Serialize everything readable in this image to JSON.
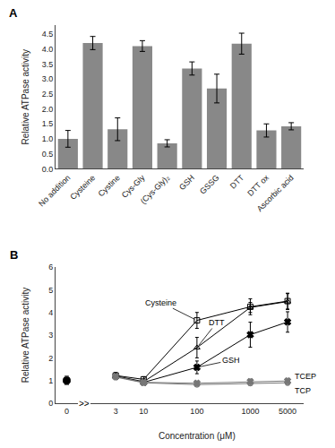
{
  "chart_data": [
    {
      "type": "bar",
      "title": "A",
      "categories": [
        "No addition",
        "Cysteine",
        "Cystine",
        "Cys-Gly",
        "(Cys-Gly)₂",
        "GSH",
        "GSSG",
        "DTT",
        "DTT ox",
        "Ascorbic acid"
      ],
      "values": [
        1.0,
        4.2,
        1.32,
        4.1,
        0.85,
        3.35,
        2.68,
        4.18,
        1.28,
        1.42
      ],
      "errors": [
        0.28,
        0.22,
        0.38,
        0.18,
        0.12,
        0.22,
        0.48,
        0.35,
        0.22,
        0.12
      ],
      "color": "#888888",
      "ylabel": "Relative ATPase activity",
      "ylim": [
        0,
        4.8
      ],
      "yticks": [
        {
          "value": 0,
          "label": "0.0"
        },
        0.5,
        {
          "value": 1,
          "label": "1.0"
        },
        1.5,
        {
          "value": 2,
          "label": "2.0"
        },
        2.5,
        {
          "value": 3,
          "label": "3.0"
        },
        3.5,
        {
          "value": 4,
          "label": "4.0"
        },
        4.5
      ],
      "grid": false
    },
    {
      "type": "line",
      "title": "B",
      "x": [
        0,
        3,
        10,
        100,
        1000,
        5000
      ],
      "xlabel": "Concentration (μM)",
      "ylabel": "Relative ATPase activity",
      "log": "x",
      "xlim": [
        0,
        10000
      ],
      "xticks": [
        0,
        3,
        10,
        100,
        1000,
        5000
      ],
      "ylim": [
        0,
        6
      ],
      "yticks": [
        0,
        1,
        2,
        3,
        4,
        5,
        6
      ],
      "grid": false,
      "annotations": [
        {
          "text": ">>"
        }
      ],
      "series": [
        {
          "name": "Cysteine",
          "color": "#000000",
          "marker": "square-open",
          "values": [
            1.0,
            1.22,
            1.05,
            3.65,
            4.25,
            4.5
          ],
          "errors": [
            0.18,
            0.12,
            0.12,
            0.35,
            0.35,
            0.35
          ]
        },
        {
          "name": "DTT",
          "color": "#000000",
          "marker": "triangle-up-open",
          "values": [
            1.0,
            1.2,
            0.95,
            2.45,
            4.22,
            4.48
          ],
          "errors": [
            0.18,
            0.15,
            0.12,
            0.45,
            0.22,
            0.35
          ]
        },
        {
          "name": "GSH",
          "color": "#000000",
          "marker": "x",
          "values": [
            1.0,
            1.18,
            0.92,
            1.58,
            3.02,
            3.58
          ],
          "errors": [
            0.18,
            0.12,
            0.1,
            0.28,
            0.55,
            0.45
          ]
        },
        {
          "name": "TCEP",
          "color": "#777777",
          "marker": "x",
          "values": [
            1.0,
            1.18,
            0.92,
            0.88,
            0.95,
            0.98
          ],
          "errors": [
            0.18,
            0.12,
            0.1,
            0.1,
            0.12,
            0.12
          ]
        },
        {
          "name": "TCP",
          "color": "#777777",
          "marker": "circle-open",
          "values": [
            1.0,
            1.15,
            0.9,
            0.82,
            0.88,
            0.9
          ],
          "errors": [
            0.18,
            0.12,
            0.1,
            0.08,
            0.1,
            0.1
          ]
        },
        {
          "color": "#000000",
          "marker": "circle",
          "values": [
            1.0,
            null,
            null,
            null,
            null,
            null
          ]
        }
      ]
    }
  ]
}
